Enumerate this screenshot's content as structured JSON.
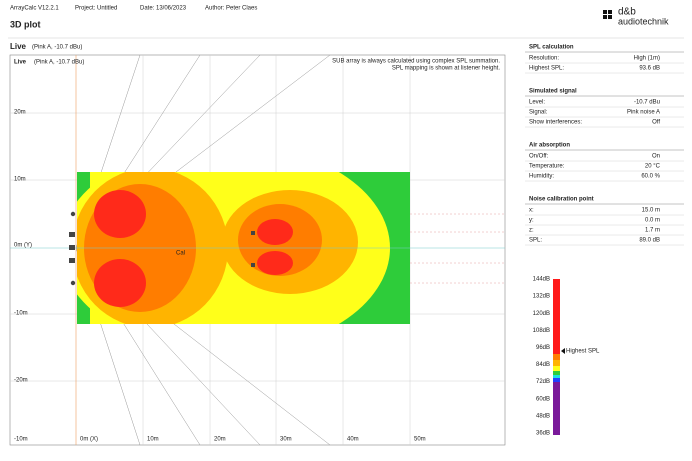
{
  "header": {
    "app": "ArrayCalc V12.2.1",
    "project": "Project: Untitled",
    "date": "Date: 13/06/2023",
    "author": "Author: Peter Claes",
    "logo_top": "d&b",
    "logo_bottom": "audiotechnik"
  },
  "title": "3D plot",
  "panel": {
    "title": "Live",
    "subtitle": "(Pink A, -10.7 dBu)"
  },
  "plot": {
    "title": "Live",
    "subtitle": "(Pink A, -10.7 dBu)",
    "note": [
      "SUB array is always calculated using complex SPL summation.",
      "SPL mapping is shown at listener height."
    ],
    "y_labels": [
      "20m",
      "10m",
      "0m (Y)",
      "-10m",
      "-20m"
    ],
    "x_labels": [
      "-10m",
      "0m (X)",
      "10m",
      "20m",
      "30m",
      "40m",
      "50m"
    ],
    "cal_label": "Cal"
  },
  "sidebar": [
    {
      "title": "SPL calculation",
      "rows": [
        [
          "Resolution:",
          "High (1m)"
        ],
        [
          "Highest SPL:",
          "93.6 dB"
        ]
      ]
    },
    {
      "title": "Simulated signal",
      "rows": [
        [
          "Level:",
          "-10.7 dBu"
        ],
        [
          "Signal:",
          "Pink noise A"
        ],
        [
          "Show interferences:",
          "Off"
        ]
      ]
    },
    {
      "title": "Air absorption",
      "rows": [
        [
          "On/Off:",
          "On"
        ],
        [
          "Temperature:",
          "20 °C"
        ],
        [
          "Humidity:",
          "60.0 %"
        ]
      ]
    },
    {
      "title": "Noise calibration point",
      "rows": [
        [
          "x:",
          "15.0 m"
        ],
        [
          "y:",
          "0.0 m"
        ],
        [
          "z:",
          "1.7 m"
        ],
        [
          "SPL:",
          "89.0 dB"
        ]
      ]
    }
  ],
  "scale": {
    "labels": [
      "144dB",
      "132dB",
      "120dB",
      "108dB",
      "96dB",
      "84dB",
      "72dB",
      "60dB",
      "48dB",
      "36dB"
    ],
    "marker": "Highest SPL"
  }
}
